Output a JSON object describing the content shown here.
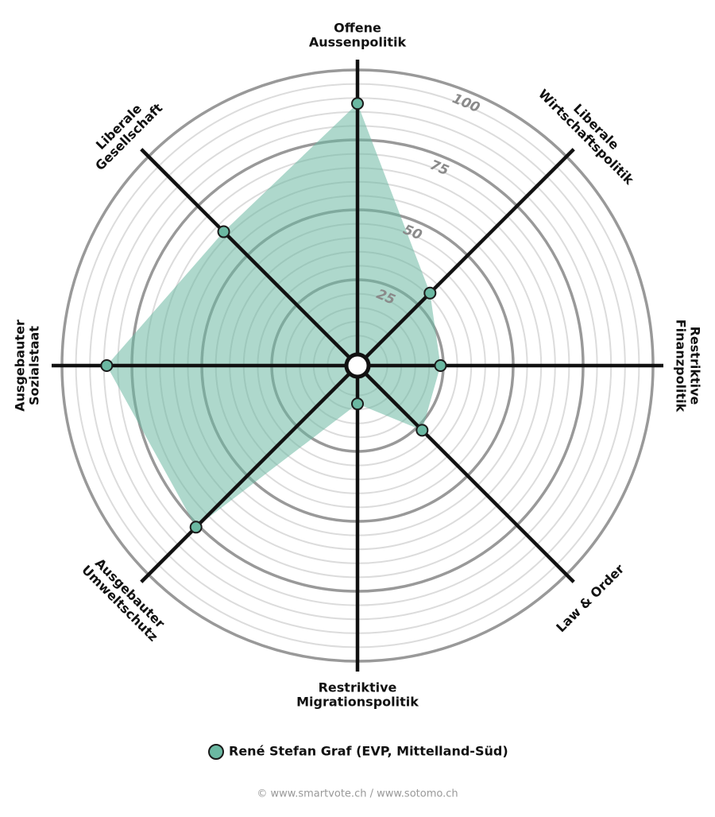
{
  "chart_data": {
    "type": "radar",
    "categories": [
      [
        "Offene",
        "Aussenpolitik"
      ],
      [
        "Liberale",
        "Wirtschaftspolitik"
      ],
      [
        "Restriktive",
        "Finanzpolitik"
      ],
      [
        "Law & Order"
      ],
      [
        "Restriktive",
        "Migrationspolitik"
      ],
      [
        "Ausgebauter",
        "Umweltschutz"
      ],
      [
        "Ausgebauter",
        "Sozialstaat"
      ],
      [
        "Liberale",
        "Gesellschaft"
      ]
    ],
    "series": [
      {
        "name": "René Stefan Graf (EVP, Mittelland-Süd)",
        "color": "#6bb8a2",
        "values": [
          88,
          31,
          24,
          27,
          8,
          76,
          84,
          62
        ]
      }
    ],
    "ylim": [
      0,
      100
    ],
    "yticks": [
      25,
      50,
      75,
      100
    ],
    "minor_yticks": [
      5,
      10,
      15,
      20,
      30,
      35,
      40,
      45,
      55,
      60,
      65,
      70,
      80,
      85,
      90,
      95
    ],
    "grid": true
  },
  "footer": "© www.smartvote.ch / www.sotomo.ch"
}
